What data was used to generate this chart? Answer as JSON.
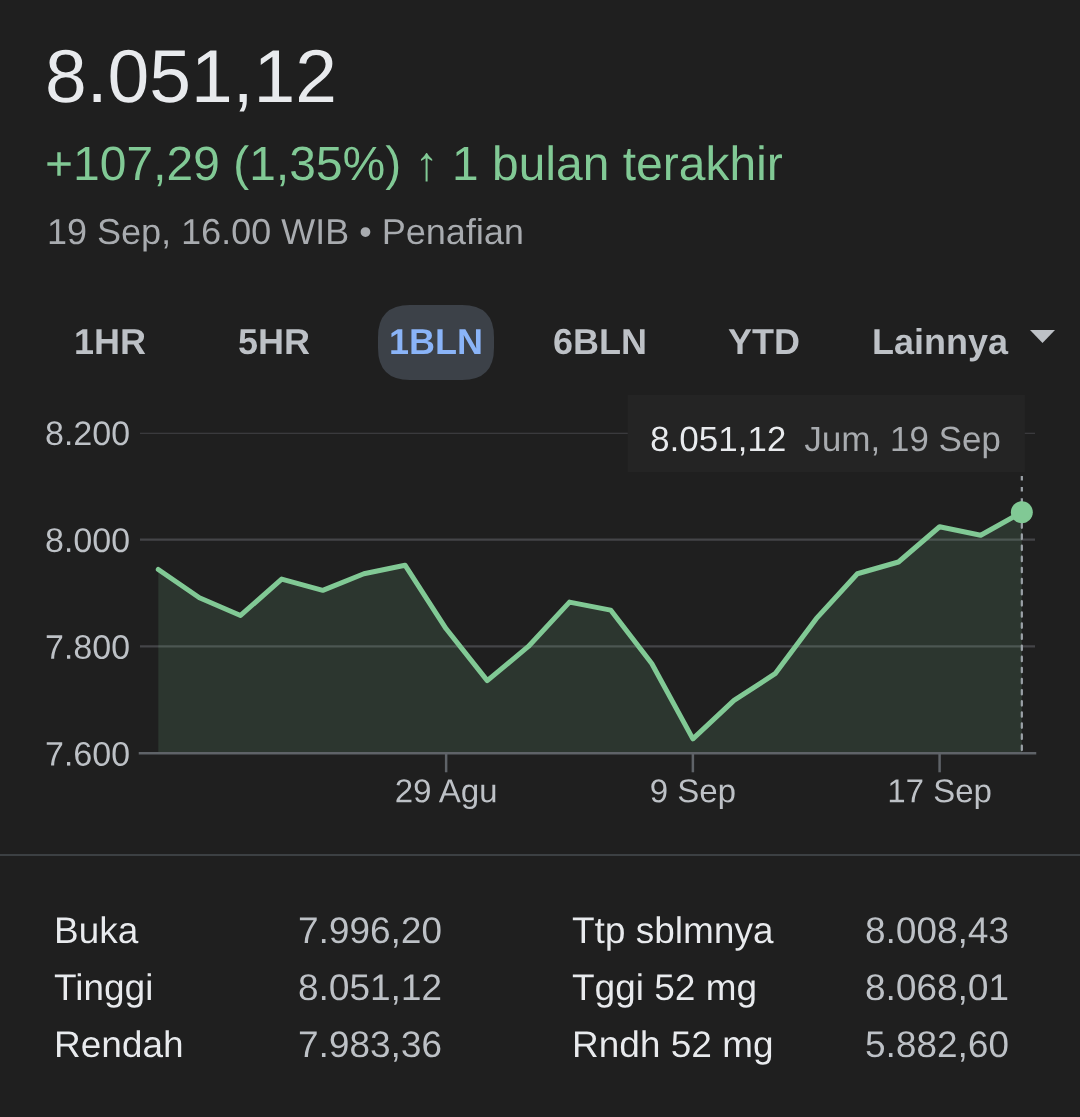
{
  "chart_data": {
    "type": "area",
    "title": "8.051,12",
    "subtitle": "+107,29 (1,35%) ↑ 1 bulan terakhir",
    "categories": [
      null,
      null,
      null,
      null,
      null,
      null,
      null,
      "29 Agu",
      null,
      null,
      null,
      null,
      null,
      "9 Sep",
      null,
      null,
      null,
      null,
      null,
      "17 Sep",
      null,
      null
    ],
    "series": [
      {
        "color": "#81c995",
        "values": [
          7944,
          7891,
          7858,
          7926,
          7905,
          7936,
          7952,
          7833,
          7736,
          7800,
          7883,
          7868,
          7768,
          7627,
          7699,
          7749,
          7852,
          7936,
          7958,
          8024,
          8008,
          8051.12
        ]
      },
      {
        "type": "scatter",
        "color": "#81c995",
        "marker": "circle",
        "values": [
          null,
          null,
          null,
          null,
          null,
          null,
          null,
          null,
          null,
          null,
          null,
          null,
          null,
          null,
          null,
          null,
          null,
          null,
          null,
          null,
          null,
          8051.12
        ]
      }
    ],
    "ylim": [
      7600,
      8200
    ],
    "yticks": [
      {
        "value": 7600,
        "label": "7.600"
      },
      {
        "value": 7800,
        "label": "7.800"
      },
      {
        "value": 8000,
        "label": "8.000"
      },
      {
        "value": 8200,
        "label": "8.200"
      }
    ],
    "grid": "y",
    "annotations": [
      "19 Sep, 16.00 WIB • Penafian",
      "1HR",
      "5HR",
      "1BLN",
      "6BLN",
      "YTD",
      "Lainnya",
      "8.051,12",
      "Jum, 19 Sep",
      "Buka",
      "7.996,20",
      "Ttp sblmnya",
      "8.008,43",
      "Tinggi",
      "8.051,12",
      "Tggi 52 mg",
      "8.068,01",
      "Rendah",
      "7.983,36",
      "Rndh 52 mg",
      "5.882,60"
    ]
  }
}
